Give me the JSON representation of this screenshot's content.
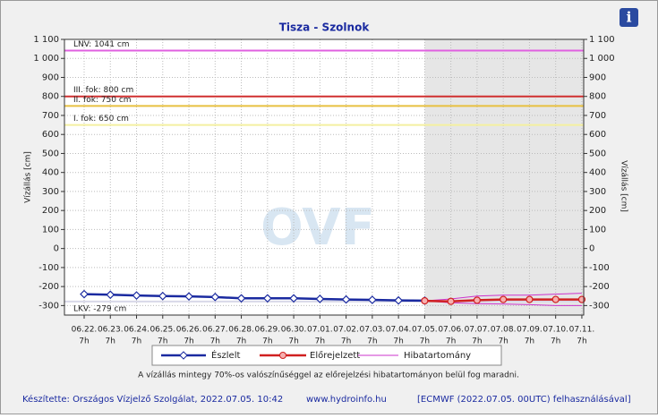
{
  "chart_data": {
    "type": "line",
    "title": "Tisza - Szolnok",
    "info_icon": "i",
    "watermark": "OVF",
    "y_label": "Vízállás [cm]",
    "y2_label": "Vízállás [cm]",
    "categories": [
      "06.22.",
      "06.23.",
      "06.24.",
      "06.25.",
      "06.26.",
      "06.27.",
      "06.28.",
      "06.29.",
      "06.30.",
      "07.01.",
      "07.02.",
      "07.03.",
      "07.04.",
      "07.05.",
      "07.06.",
      "07.07.",
      "07.08.",
      "07.09.",
      "07.10.",
      "07.11."
    ],
    "hour_label": "7h",
    "ylim": [
      -350,
      1100
    ],
    "yticks": [
      -300,
      -200,
      -100,
      0,
      100,
      200,
      300,
      400,
      500,
      600,
      700,
      800,
      900,
      {
        "value": 1000,
        "label": "1 000"
      },
      {
        "value": 1100,
        "label": "1 100"
      }
    ],
    "grid": true,
    "levels": [
      {
        "label": "LNV: 1041 cm",
        "value": 1041,
        "color": "#e060e0"
      },
      {
        "label": "III. fok: 800 cm",
        "value": 800,
        "color": "#d03030"
      },
      {
        "label": "II. fok: 750 cm",
        "value": 750,
        "color": "#e8c040"
      },
      {
        "label": "I. fok: 650 cm",
        "value": 650,
        "color": "#f4f0a0"
      },
      {
        "label": "LKV: -279 cm",
        "value": -279,
        "color": "#d8d8e8"
      }
    ],
    "series": [
      {
        "name": "Észlelt",
        "color": "#1a2aa0",
        "values": [
          -240,
          -243,
          -247,
          -250,
          -252,
          -255,
          -262,
          -262,
          -262,
          -265,
          -268,
          -270,
          -273,
          -274,
          null,
          null,
          null,
          null,
          null,
          null
        ]
      },
      {
        "name": "Előrejelzett",
        "color": "#d02020",
        "values": [
          null,
          null,
          null,
          null,
          null,
          null,
          null,
          null,
          null,
          null,
          null,
          null,
          null,
          -275,
          -278,
          -272,
          -268,
          -268,
          -268,
          -268
        ]
      }
    ],
    "error_band": {
      "name": "Hibatartomány",
      "color": "#cc33cc",
      "upper": [
        null,
        null,
        null,
        null,
        null,
        null,
        null,
        null,
        null,
        null,
        null,
        null,
        null,
        -275,
        -265,
        -250,
        -245,
        -245,
        -240,
        -235
      ],
      "lower": [
        null,
        null,
        null,
        null,
        null,
        null,
        null,
        null,
        null,
        null,
        null,
        null,
        null,
        -275,
        -285,
        -290,
        -292,
        -295,
        -300,
        -300
      ]
    },
    "note": "A vízállás mintegy 70%-os valószínűséggel az előrejelzési hibatartományon belül fog maradni.",
    "footer": [
      "Készítette: Országos Vízjelző Szolgálat, 2022.07.05. 10:42",
      "www.hydroinfo.hu",
      "[ECMWF (2022.07.05. 00UTC) felhasználásával]"
    ]
  }
}
